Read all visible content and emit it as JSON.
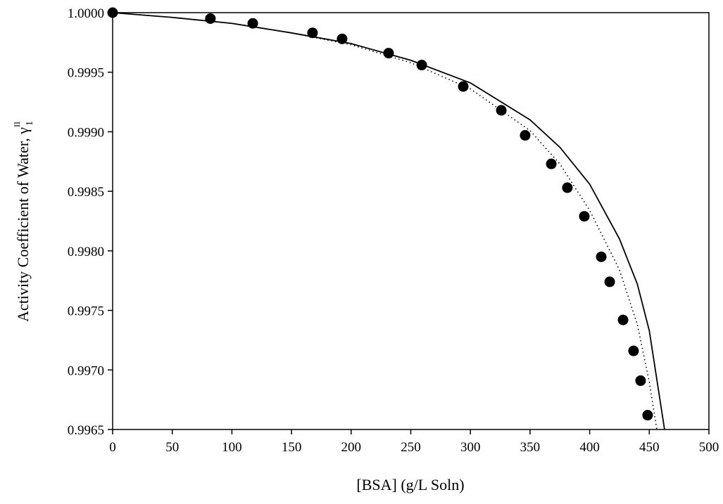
{
  "chart_data": {
    "type": "scatter",
    "xlabel": "[BSA] (g/L Soln)",
    "ylabel": "Activity  Coefficient  of  Water, γ",
    "ylabel_sup": "II",
    "ylabel_sub": "1",
    "xlim": [
      0,
      500
    ],
    "xticks": [
      0,
      50,
      100,
      150,
      200,
      250,
      300,
      350,
      400,
      450,
      500
    ],
    "ylim": [
      0.9965,
      1.0
    ],
    "yticks": [
      {
        "value": 0.9965,
        "label": "0.9965"
      },
      {
        "value": 0.997,
        "label": "0.9970"
      },
      {
        "value": 0.9975,
        "label": "0.9975"
      },
      {
        "value": 0.998,
        "label": "0.9980"
      },
      {
        "value": 0.9985,
        "label": "0.9985"
      },
      {
        "value": 0.999,
        "label": "0.9990"
      },
      {
        "value": 0.9995,
        "label": "0.9995"
      },
      {
        "value": 1.0,
        "label": "1.0000"
      }
    ],
    "series": [
      {
        "type": "scatter",
        "color": "#000000",
        "x": [
          0,
          82,
          117.5,
          167.6,
          192.4,
          231.4,
          259.2,
          294,
          325.9,
          345.9,
          367.8,
          381.3,
          395.5,
          409.7,
          416.8,
          428,
          436.8,
          442.7,
          448.6
        ],
        "values": [
          1.0,
          0.99995,
          0.99991,
          0.99983,
          0.99978,
          0.99966,
          0.99956,
          0.99938,
          0.99918,
          0.99897,
          0.99873,
          0.99853,
          0.99829,
          0.99795,
          0.99774,
          0.99742,
          0.99716,
          0.99691,
          0.99662
        ]
      },
      {
        "type": "line",
        "style": "solid",
        "color": "#000000",
        "x": [
          0,
          50,
          100,
          150,
          200,
          250,
          300,
          350,
          375,
          400,
          425,
          440,
          450,
          462.8
        ],
        "values": [
          1.0,
          0.99996,
          0.99991,
          0.99983,
          0.99974,
          0.9996,
          0.99941,
          0.9991,
          0.99887,
          0.99856,
          0.9981,
          0.99772,
          0.99733,
          0.9965
        ]
      },
      {
        "type": "line",
        "style": "dotted",
        "color": "#000000",
        "x": [
          0,
          50,
          100,
          150,
          200,
          250,
          300,
          350,
          375,
          400,
          425,
          440,
          450,
          456.3
        ],
        "values": [
          1.0,
          0.99996,
          0.99991,
          0.99983,
          0.99973,
          0.99958,
          0.99936,
          0.99901,
          0.99873,
          0.99834,
          0.99784,
          0.99738,
          0.9969,
          0.9965
        ]
      }
    ]
  }
}
